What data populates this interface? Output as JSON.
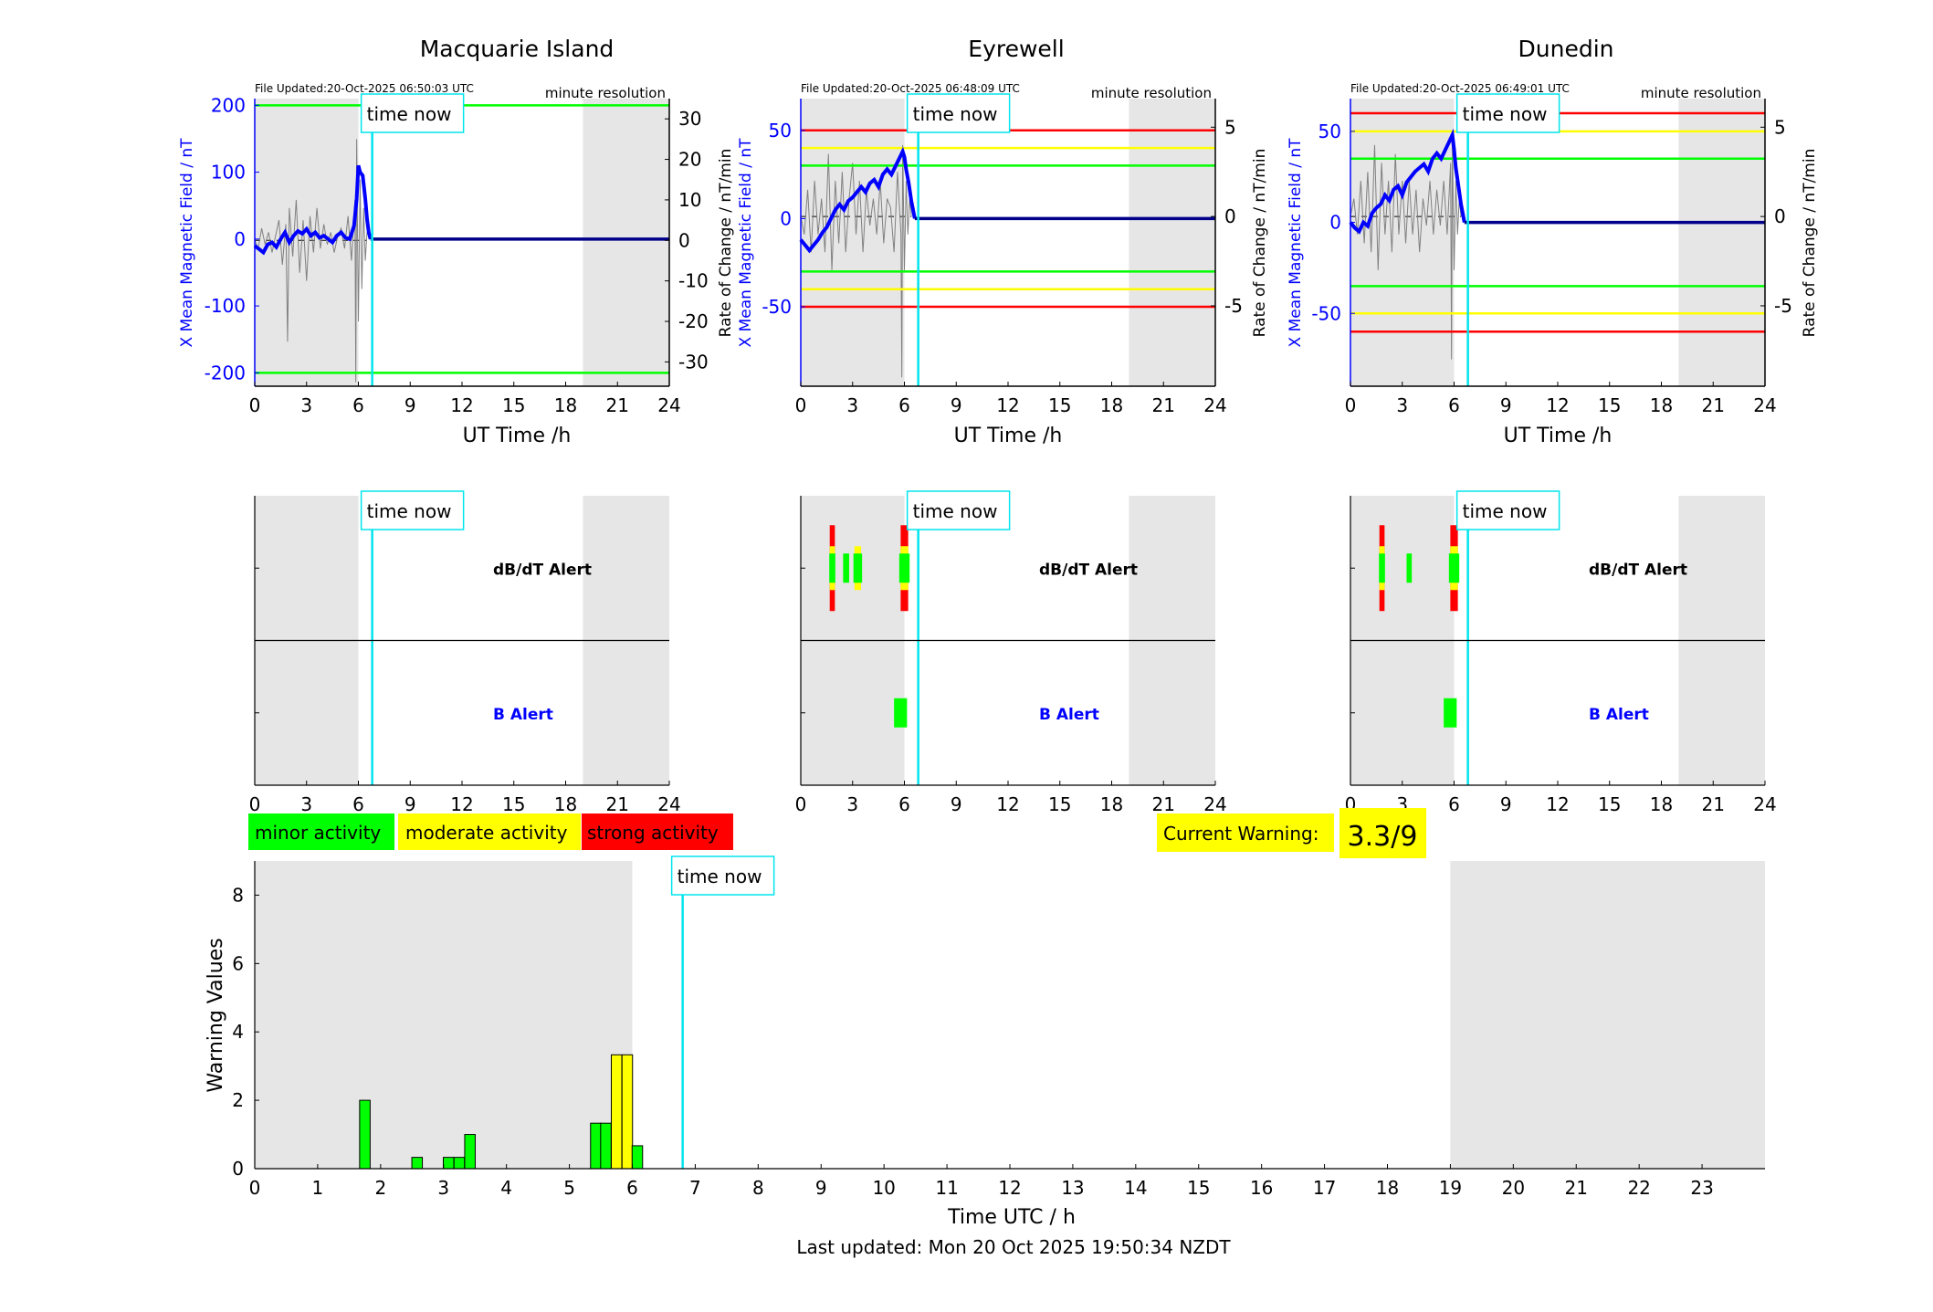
{
  "time_now_label": "time now",
  "minute_resolution_label": "minute resolution",
  "legend": {
    "minor": {
      "label": "minor activity",
      "color": "#00ff00"
    },
    "moderate": {
      "label": "moderate activity",
      "color": "#ffff00"
    },
    "strong": {
      "label": "strong activity",
      "color": "#ff0000"
    }
  },
  "current_warning": {
    "label": "Current Warning:",
    "value": "3.3/9"
  },
  "last_updated": "Last updated: Mon 20 Oct 2025 19:50:34 NZDT",
  "colors": {
    "night_shade": "#e6e6e6",
    "time_now": "#00e5ee",
    "field": "#0000ff",
    "rate": "#808080"
  },
  "chart_data": [
    {
      "type": "line",
      "title": "Macquarie Island",
      "file_updated": "File Updated:20-Oct-2025 06:50:03 UTC",
      "xlabel": "UT Time /h",
      "ylabel_left": "X Mean Magnetic Field / nT",
      "ylabel_right": "Rate of Change / nT/min",
      "xlim": [
        0,
        24
      ],
      "xticks": [
        "0",
        "3",
        "6",
        "9",
        "12",
        "15",
        "18",
        "21",
        "24"
      ],
      "ylim_left": [
        -220,
        210
      ],
      "yticks_left": [
        "200",
        "100",
        "0",
        "-100",
        "-200"
      ],
      "ylim_right": [
        -36,
        35
      ],
      "yticks_right": [
        "30",
        "20",
        "10",
        "0",
        "-10",
        "-20",
        "-30"
      ],
      "time_now": 6.8,
      "night": [
        [
          0,
          6
        ],
        [
          19,
          24
        ]
      ],
      "thresholds": [
        {
          "value": 200,
          "level": "minor"
        },
        {
          "value": -200,
          "level": "minor"
        }
      ],
      "field_series": {
        "x": [
          0,
          0.25,
          0.5,
          0.75,
          1,
          1.25,
          1.5,
          1.75,
          2,
          2.25,
          2.5,
          2.75,
          3,
          3.25,
          3.5,
          3.75,
          4,
          4.25,
          4.5,
          4.75,
          5,
          5.25,
          5.5,
          5.75,
          5.9,
          6,
          6.1,
          6.25,
          6.4,
          6.5,
          6.6,
          6.7
        ],
        "y": [
          -10,
          -15,
          -20,
          -8,
          -5,
          -12,
          0,
          10,
          -5,
          5,
          12,
          8,
          15,
          5,
          10,
          2,
          5,
          0,
          -5,
          5,
          10,
          2,
          0,
          20,
          60,
          110,
          100,
          95,
          60,
          30,
          10,
          0
        ]
      },
      "rate_series": {
        "x": [
          0,
          0.2,
          0.4,
          0.6,
          0.8,
          1,
          1.2,
          1.4,
          1.6,
          1.8,
          1.9,
          2,
          2.2,
          2.4,
          2.6,
          2.8,
          3,
          3.2,
          3.4,
          3.6,
          3.8,
          4,
          4.2,
          4.4,
          4.6,
          4.8,
          5,
          5.2,
          5.4,
          5.6,
          5.8,
          5.85,
          5.9,
          6,
          6.1,
          6.2,
          6.3,
          6.4,
          6.5
        ],
        "y": [
          0,
          -2,
          3,
          -1,
          2,
          -3,
          1,
          5,
          -6,
          4,
          -25,
          8,
          -4,
          10,
          -8,
          5,
          -10,
          6,
          -3,
          8,
          -2,
          4,
          -1,
          2,
          -3,
          1,
          3,
          -2,
          6,
          -5,
          10,
          -35,
          25,
          -20,
          15,
          -12,
          8,
          -5,
          2
        ]
      },
      "rate_extent": 6.5,
      "field_extent": 6.7,
      "alert_title": "",
      "dbdt_label": "dB/dT Alert",
      "b_label": "B Alert",
      "dbdt_alerts": [],
      "b_alerts": []
    },
    {
      "type": "line",
      "title": "Eyrewell",
      "file_updated": "File Updated:20-Oct-2025 06:48:09 UTC",
      "xlabel": "UT Time /h",
      "ylabel_left": "X Mean Magnetic Field / nT",
      "ylabel_right": "Rate of Change / nT/min",
      "xlim": [
        0,
        24
      ],
      "xticks": [
        "0",
        "3",
        "6",
        "9",
        "12",
        "15",
        "18",
        "21",
        "24"
      ],
      "ylim_left": [
        -95,
        68
      ],
      "yticks_left": [
        "50",
        "0",
        "-50"
      ],
      "ylim_right": [
        -9.5,
        6.6
      ],
      "yticks_right": [
        "5",
        "0",
        "-5"
      ],
      "time_now": 6.8,
      "night": [
        [
          0,
          6
        ],
        [
          19,
          24
        ]
      ],
      "thresholds": [
        {
          "value": 50,
          "level": "strong"
        },
        {
          "value": 40,
          "level": "moderate"
        },
        {
          "value": 30,
          "level": "minor"
        },
        {
          "value": -30,
          "level": "minor"
        },
        {
          "value": -40,
          "level": "moderate"
        },
        {
          "value": -50,
          "level": "strong"
        }
      ],
      "field_series": {
        "x": [
          0,
          0.25,
          0.5,
          0.75,
          1,
          1.25,
          1.5,
          1.75,
          2,
          2.25,
          2.5,
          2.75,
          3,
          3.25,
          3.5,
          3.75,
          4,
          4.25,
          4.5,
          4.75,
          5,
          5.25,
          5.5,
          5.75,
          5.9,
          6,
          6.1,
          6.25,
          6.4,
          6.5,
          6.6
        ],
        "y": [
          -12,
          -15,
          -18,
          -15,
          -12,
          -8,
          -5,
          0,
          5,
          8,
          5,
          10,
          12,
          15,
          18,
          15,
          20,
          22,
          18,
          25,
          28,
          25,
          30,
          35,
          38,
          35,
          28,
          20,
          10,
          5,
          0
        ]
      },
      "rate_series": {
        "x": [
          0,
          0.2,
          0.4,
          0.6,
          0.8,
          1,
          1.2,
          1.4,
          1.6,
          1.8,
          2,
          2.2,
          2.4,
          2.6,
          2.8,
          3,
          3.2,
          3.4,
          3.6,
          3.8,
          4,
          4.2,
          4.4,
          4.6,
          4.8,
          5,
          5.2,
          5.4,
          5.6,
          5.8,
          5.85,
          5.9,
          6,
          6.1,
          6.2,
          6.3,
          6.4
        ],
        "y": [
          0,
          -1,
          1.5,
          -2,
          2,
          -1,
          1,
          -2,
          3.5,
          -3,
          2,
          -1.5,
          2.5,
          -2,
          1,
          3,
          -1,
          2,
          -2,
          1.5,
          -0.5,
          1,
          -1,
          2,
          -1.5,
          1,
          0.5,
          -2,
          2.5,
          -1,
          -9,
          4,
          -3,
          2,
          -1,
          1,
          0
        ]
      },
      "rate_extent": 6.4,
      "field_extent": 6.6,
      "dbdt_label": "dB/dT Alert",
      "b_label": "B Alert",
      "dbdt_alerts": [
        {
          "x0": 1.65,
          "x1": 2.0,
          "levels": [
            "minor",
            "moderate",
            "strong"
          ]
        },
        {
          "x0": 2.45,
          "x1": 2.8,
          "levels": [
            "minor"
          ]
        },
        {
          "x0": 3.05,
          "x1": 3.55,
          "levels": [
            "minor",
            "moderate"
          ]
        },
        {
          "x0": 5.7,
          "x1": 6.3,
          "levels": [
            "minor",
            "moderate",
            "strong"
          ]
        }
      ],
      "b_alerts": [
        {
          "x0": 5.4,
          "x1": 6.15,
          "levels": [
            "minor"
          ]
        }
      ]
    },
    {
      "type": "line",
      "title": "Dunedin",
      "file_updated": "File Updated:20-Oct-2025 06:49:01 UTC",
      "xlabel": "UT Time /h",
      "ylabel_left": "X Mean Magnetic Field / nT",
      "ylabel_right": "Rate of Change / nT/min",
      "xlim": [
        0,
        24
      ],
      "xticks": [
        "0",
        "3",
        "6",
        "9",
        "12",
        "15",
        "18",
        "21",
        "24"
      ],
      "ylim_left": [
        -90,
        68
      ],
      "yticks_left": [
        "50",
        "0",
        "-50"
      ],
      "ylim_right": [
        -9.5,
        6.6
      ],
      "yticks_right": [
        "5",
        "0",
        "-5"
      ],
      "time_now": 6.8,
      "night": [
        [
          0,
          6
        ],
        [
          19,
          24
        ]
      ],
      "thresholds": [
        {
          "value": 60,
          "level": "strong"
        },
        {
          "value": 50,
          "level": "moderate"
        },
        {
          "value": 35,
          "level": "minor"
        },
        {
          "value": -35,
          "level": "minor"
        },
        {
          "value": -50,
          "level": "moderate"
        },
        {
          "value": -60,
          "level": "strong"
        }
      ],
      "field_series": {
        "x": [
          0,
          0.25,
          0.5,
          0.75,
          1,
          1.25,
          1.5,
          1.75,
          2,
          2.25,
          2.5,
          2.75,
          3,
          3.25,
          3.5,
          3.75,
          4,
          4.25,
          4.5,
          4.75,
          5,
          5.25,
          5.5,
          5.75,
          5.9,
          6,
          6.1,
          6.25,
          6.4,
          6.5,
          6.6
        ],
        "y": [
          0,
          -3,
          -5,
          0,
          -2,
          5,
          8,
          10,
          15,
          12,
          18,
          20,
          15,
          22,
          25,
          28,
          30,
          32,
          28,
          35,
          38,
          35,
          40,
          45,
          48,
          40,
          30,
          20,
          10,
          5,
          0
        ]
      },
      "rate_series": {
        "x": [
          0,
          0.2,
          0.4,
          0.6,
          0.8,
          1,
          1.2,
          1.4,
          1.6,
          1.8,
          2,
          2.2,
          2.4,
          2.6,
          2.8,
          3,
          3.2,
          3.4,
          3.6,
          3.8,
          4,
          4.2,
          4.4,
          4.6,
          4.8,
          5,
          5.2,
          5.4,
          5.6,
          5.8,
          5.85,
          5.9,
          6,
          6.1,
          6.2,
          6.3,
          6.4
        ],
        "y": [
          0,
          1,
          -1,
          2,
          -1.5,
          2.5,
          -2,
          4,
          -3,
          3,
          -1,
          2,
          -2,
          3.5,
          -1,
          2,
          -1.5,
          2,
          -1,
          1.5,
          -2,
          1,
          -0.5,
          2,
          -1,
          1.5,
          -0.5,
          2,
          -1,
          3,
          -8,
          4,
          -3,
          2,
          -1,
          1,
          0
        ]
      },
      "rate_extent": 6.4,
      "field_extent": 6.6,
      "dbdt_label": "dB/dT Alert",
      "b_label": "B Alert",
      "dbdt_alerts": [
        {
          "x0": 1.65,
          "x1": 2.0,
          "levels": [
            "minor",
            "moderate",
            "strong"
          ]
        },
        {
          "x0": 3.25,
          "x1": 3.55,
          "levels": [
            "minor"
          ]
        },
        {
          "x0": 5.7,
          "x1": 6.3,
          "levels": [
            "minor",
            "moderate",
            "strong"
          ]
        }
      ],
      "b_alerts": [
        {
          "x0": 5.4,
          "x1": 6.15,
          "levels": [
            "minor"
          ]
        }
      ]
    },
    {
      "type": "bar",
      "title": "",
      "xlabel": "Time UTC / h",
      "ylabel": "Warning Values",
      "xlim": [
        0,
        24
      ],
      "xticks": [
        "0",
        "1",
        "2",
        "3",
        "4",
        "5",
        "6",
        "7",
        "8",
        "9",
        "10",
        "11",
        "12",
        "13",
        "14",
        "15",
        "16",
        "17",
        "18",
        "19",
        "20",
        "21",
        "22",
        "23"
      ],
      "ylim": [
        0,
        9
      ],
      "yticks": [
        "0",
        "2",
        "4",
        "6",
        "8"
      ],
      "time_now": 6.8,
      "night": [
        [
          0,
          6
        ],
        [
          19,
          24
        ]
      ],
      "bars": [
        {
          "x": 1.75,
          "value": 2.0,
          "level": "minor"
        },
        {
          "x": 2.58,
          "value": 0.33,
          "level": "minor"
        },
        {
          "x": 3.08,
          "value": 0.33,
          "level": "minor"
        },
        {
          "x": 3.25,
          "value": 0.33,
          "level": "minor"
        },
        {
          "x": 3.42,
          "value": 1.0,
          "level": "minor"
        },
        {
          "x": 5.42,
          "value": 1.33,
          "level": "minor"
        },
        {
          "x": 5.58,
          "value": 1.33,
          "level": "minor"
        },
        {
          "x": 5.75,
          "value": 3.33,
          "level": "moderate"
        },
        {
          "x": 5.92,
          "value": 3.33,
          "level": "moderate"
        },
        {
          "x": 6.08,
          "value": 0.67,
          "level": "minor"
        }
      ],
      "bar_width": 0.167
    }
  ]
}
